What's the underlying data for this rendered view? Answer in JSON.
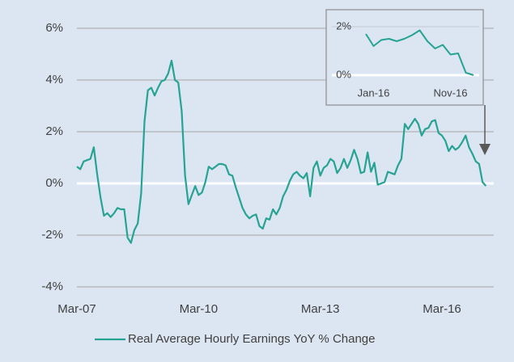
{
  "chart_data": [
    {
      "type": "line",
      "categories": [
        "Mar-07",
        null,
        null,
        null,
        null,
        null,
        null,
        null,
        null,
        null,
        null,
        null,
        null,
        null,
        null,
        null,
        null,
        null,
        null,
        null,
        null,
        null,
        null,
        null,
        null,
        null,
        null,
        null,
        null,
        null,
        null,
        null,
        null,
        null,
        null,
        null,
        "Mar-10",
        null,
        null,
        null,
        null,
        null,
        null,
        null,
        null,
        null,
        null,
        null,
        null,
        null,
        null,
        null,
        null,
        null,
        null,
        null,
        null,
        null,
        null,
        null,
        null,
        null,
        null,
        null,
        null,
        null,
        null,
        null,
        null,
        null,
        null,
        null,
        "Mar-13",
        null,
        null,
        null,
        null,
        null,
        null,
        null,
        null,
        null,
        null,
        null,
        null,
        null,
        null,
        null,
        null,
        null,
        null,
        null,
        null,
        null,
        null,
        null,
        null,
        null,
        null,
        null,
        null,
        null,
        null,
        null,
        null,
        null,
        null,
        null,
        "Mar-16",
        null,
        null,
        null,
        null,
        null,
        null,
        null,
        null,
        null,
        null,
        null,
        null,
        null
      ],
      "series": [
        {
          "name": "Real Average Hourly Earnings YoY % Change",
          "color": "#26a393",
          "values": [
            0.65,
            0.55,
            0.85,
            0.9,
            0.95,
            1.4,
            0.35,
            -0.55,
            -1.25,
            -1.15,
            -1.3,
            -1.15,
            -0.95,
            -1.0,
            -1.0,
            -2.1,
            -2.3,
            -1.8,
            -1.55,
            -0.4,
            2.4,
            3.6,
            3.7,
            3.4,
            3.7,
            3.95,
            4.0,
            4.25,
            4.75,
            4.0,
            3.9,
            2.8,
            0.3,
            -0.8,
            -0.45,
            -0.1,
            -0.45,
            -0.35,
            0.05,
            0.65,
            0.55,
            0.65,
            0.75,
            0.75,
            0.7,
            0.35,
            0.3,
            -0.15,
            -0.55,
            -0.95,
            -1.2,
            -1.35,
            -1.25,
            -1.2,
            -1.65,
            -1.75,
            -1.35,
            -1.4,
            -1.0,
            -1.2,
            -0.95,
            -0.5,
            -0.25,
            0.1,
            0.35,
            0.45,
            0.3,
            0.2,
            0.4,
            -0.5,
            0.6,
            0.85,
            0.3,
            0.6,
            0.7,
            0.95,
            0.85,
            0.4,
            0.6,
            0.95,
            0.6,
            0.9,
            1.3,
            0.95,
            0.4,
            0.45,
            1.2,
            0.45,
            0.8,
            -0.05,
            0.0,
            0.05,
            0.45,
            0.4,
            0.35,
            0.7,
            0.95,
            2.3,
            2.1,
            2.3,
            2.5,
            2.3,
            1.85,
            2.1,
            2.15,
            2.4,
            2.45,
            1.95,
            1.85,
            1.65,
            1.25,
            1.45,
            1.3,
            1.4,
            1.6,
            1.85,
            1.4,
            1.15,
            0.85,
            0.75,
            0.05,
            -0.1
          ]
        }
      ],
      "ylim": [
        -4,
        6
      ],
      "yticks": [
        {
          "value": -4,
          "label": "-4%"
        },
        {
          "value": -2,
          "label": "-2%"
        },
        {
          "value": 0,
          "label": "0%"
        },
        {
          "value": 2,
          "label": "2%"
        },
        {
          "value": 4,
          "label": "4%"
        },
        {
          "value": 6,
          "label": "6%"
        }
      ],
      "grid": true
    },
    {
      "type": "line",
      "categories": [
        null,
        "Jan-16",
        null,
        null,
        null,
        null,
        null,
        null,
        null,
        null,
        null,
        "Nov-16",
        null,
        null,
        null
      ],
      "series": [
        {
          "color": "#26a393",
          "values": [
            1.7,
            1.2,
            1.45,
            1.5,
            1.4,
            1.5,
            1.65,
            1.85,
            1.4,
            1.1,
            1.25,
            0.85,
            0.9,
            0.1,
            0.0
          ]
        }
      ],
      "ylim": [
        -0.2,
        2.3
      ],
      "yticks": [
        {
          "value": 0,
          "label": "0%"
        },
        {
          "value": 2,
          "label": "2%"
        }
      ],
      "grid": true
    }
  ]
}
